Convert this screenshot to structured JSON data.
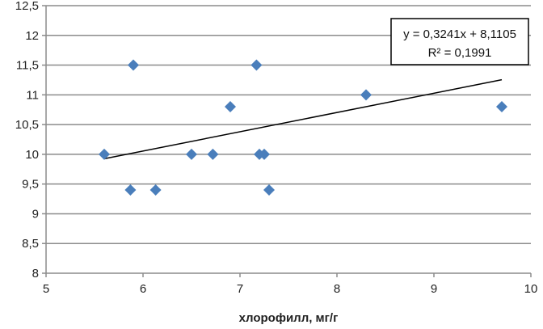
{
  "chart_data": {
    "type": "scatter",
    "title": "",
    "xlabel": "хлорофилл, мг/г",
    "ylabel": "",
    "xlim": [
      5,
      10
    ],
    "ylim": [
      8,
      12.5
    ],
    "x_ticks": [
      "5",
      "6",
      "7",
      "8",
      "9",
      "10"
    ],
    "y_ticks": [
      "8",
      "8,5",
      "9",
      "9,5",
      "10",
      "10,5",
      "11",
      "11,5",
      "12",
      "12,5"
    ],
    "grid": "horizontal",
    "marker": "diamond",
    "marker_color": "#4a7ebb",
    "points": [
      {
        "x": 5.6,
        "y": 10
      },
      {
        "x": 5.87,
        "y": 9.4
      },
      {
        "x": 5.9,
        "y": 11.5
      },
      {
        "x": 6.13,
        "y": 9.4
      },
      {
        "x": 6.5,
        "y": 10
      },
      {
        "x": 6.72,
        "y": 10
      },
      {
        "x": 6.9,
        "y": 10.8
      },
      {
        "x": 7.17,
        "y": 11.5
      },
      {
        "x": 7.2,
        "y": 10
      },
      {
        "x": 7.25,
        "y": 10
      },
      {
        "x": 7.3,
        "y": 9.4
      },
      {
        "x": 8.3,
        "y": 11
      },
      {
        "x": 9.7,
        "y": 10.8
      }
    ],
    "trendline": {
      "type": "linear",
      "slope": 0.3241,
      "intercept": 8.1105,
      "color": "#000000",
      "equation_label": "y = 0,3241x + 8,1105",
      "r2_label": "R² = 0,1991"
    }
  }
}
